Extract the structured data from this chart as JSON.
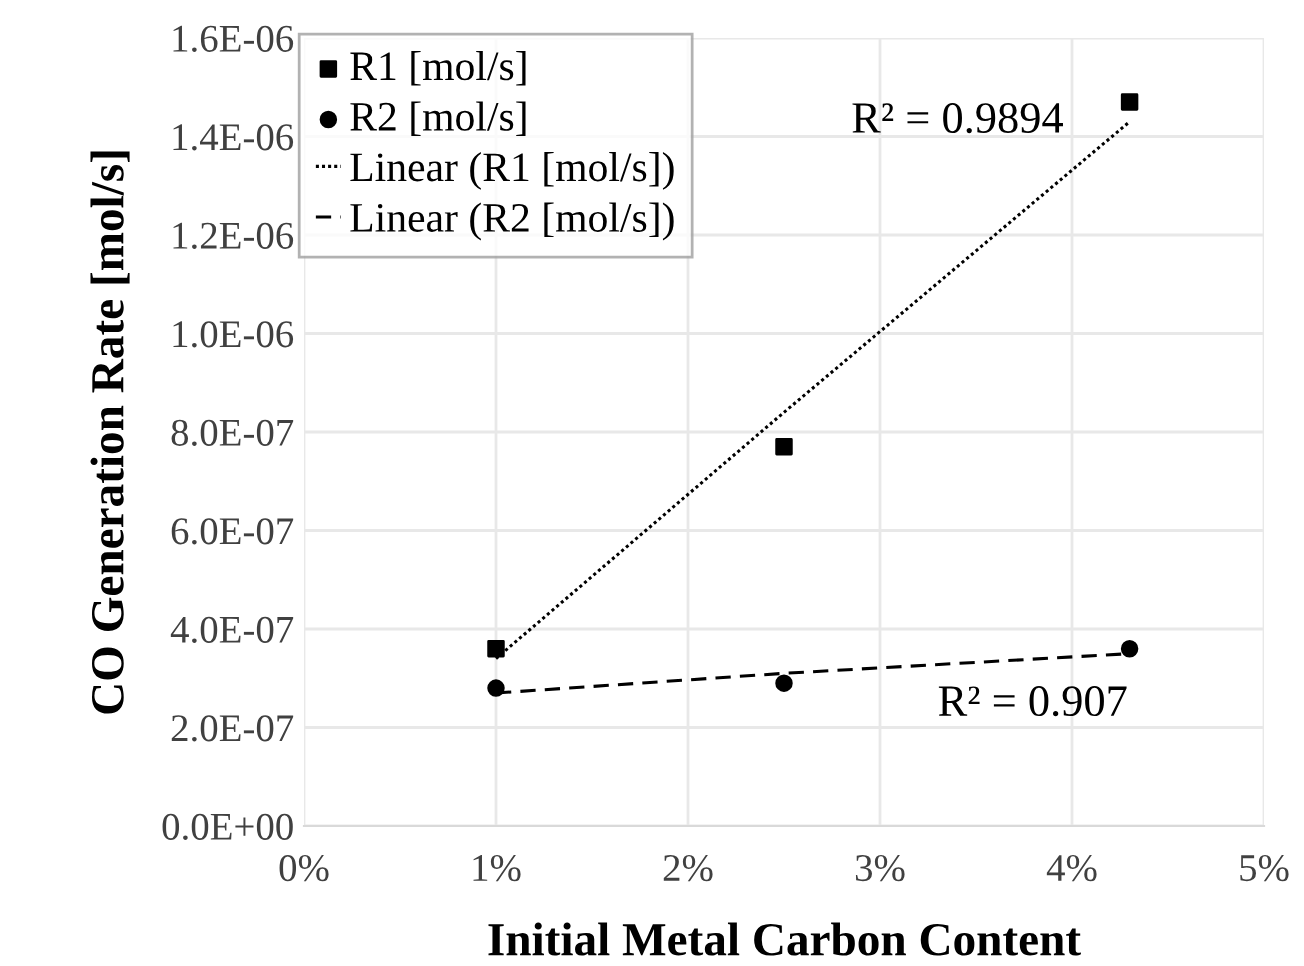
{
  "chart_data": {
    "type": "scatter",
    "xlabel": "Initial Metal Carbon Content",
    "ylabel": "CO Generation Rate [mol/s]",
    "x": [
      1,
      2.5,
      4.3
    ],
    "series": [
      {
        "name": "R1 [mol/s]",
        "color": "#000000",
        "marker": "square",
        "values": [
          3.6e-07,
          7.7e-07,
          1.47e-06
        ]
      },
      {
        "name": "R2 [mol/s]",
        "color": "#000000",
        "marker": "circle",
        "values": [
          2.8e-07,
          2.9e-07,
          3.6e-07
        ]
      },
      {
        "name": "Linear (R1 [mol/s])",
        "type": "line",
        "color": "#000000",
        "line_style": "dotted",
        "marker": "none",
        "values": [
          3.4e-07,
          8.4e-07,
          1.43e-06
        ]
      },
      {
        "name": "Linear (R2 [mol/s])",
        "type": "line",
        "color": "#000000",
        "line_style": "dashed",
        "marker": "none",
        "values": [
          2.7e-07,
          3.1e-07,
          3.5e-07
        ]
      }
    ],
    "annotations": [
      "R² = 0.9894",
      "R² = 0.907"
    ],
    "xlim": [
      0,
      5
    ],
    "xticks": [
      {
        "value": 0,
        "label": "0%"
      },
      {
        "value": 1,
        "label": "1%"
      },
      {
        "value": 2,
        "label": "2%"
      },
      {
        "value": 3,
        "label": "3%"
      },
      {
        "value": 4,
        "label": "4%"
      },
      {
        "value": 5,
        "label": "5%"
      }
    ],
    "ylim": [
      0,
      1.6e-06
    ],
    "yticks": [
      {
        "value": 0,
        "label": "0.0E+00"
      },
      {
        "value": 2e-07,
        "label": "2.0E-07"
      },
      {
        "value": 4e-07,
        "label": "4.0E-07"
      },
      {
        "value": 6e-07,
        "label": "6.0E-07"
      },
      {
        "value": 8e-07,
        "label": "8.0E-07"
      },
      {
        "value": 1e-06,
        "label": "1.0E-06"
      },
      {
        "value": 1.2e-06,
        "label": "1.2E-06"
      },
      {
        "value": 1.4e-06,
        "label": "1.4E-06"
      },
      {
        "value": 1.6e-06,
        "label": "1.6E-06"
      }
    ],
    "grid": true,
    "legend": "top left"
  }
}
